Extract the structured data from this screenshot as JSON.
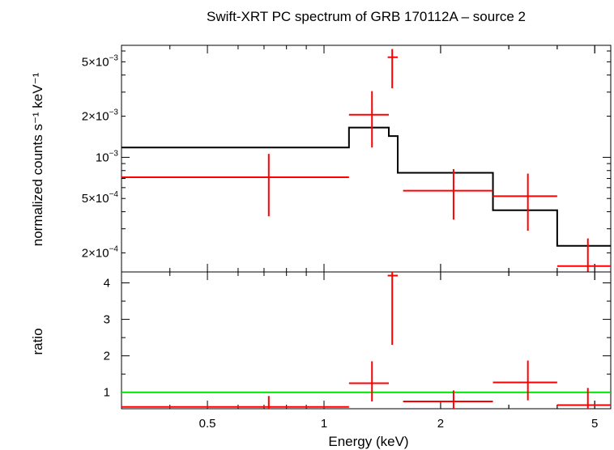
{
  "chart_data": [
    {
      "panel": "spectrum",
      "type": "scatter",
      "title": "Swift-XRT PC spectrum of GRB 170112A – source 2",
      "xlabel": "Energy (keV)",
      "ylabel": "normalized counts s⁻¹ keV⁻¹",
      "xscale": "log",
      "yscale": "log",
      "xlim": [
        0.3,
        5.5
      ],
      "ylim": [
        0.000145,
        0.0066
      ],
      "yticks": [
        {
          "value": 0.005,
          "label_base": "5×10",
          "label_exp": "−3"
        },
        {
          "value": 0.002,
          "label_base": "2×10",
          "label_exp": "−3"
        },
        {
          "value": 0.001,
          "label_base": "10",
          "label_exp": "−3"
        },
        {
          "value": 0.0005,
          "label_base": "5×10",
          "label_exp": "−4"
        },
        {
          "value": 0.0002,
          "label_base": "2×10",
          "label_exp": "−4"
        }
      ],
      "series": [
        {
          "name": "data",
          "color": "#ff0000",
          "points": [
            {
              "x": 0.72,
              "xlo": 0.3,
              "xhi": 1.16,
              "y": 0.000715,
              "ylo": 0.00037,
              "yhi": 0.00106
            },
            {
              "x": 1.33,
              "xlo": 1.16,
              "xhi": 1.47,
              "y": 0.00205,
              "ylo": 0.00118,
              "yhi": 0.00305
            },
            {
              "x": 1.5,
              "xlo": 1.46,
              "xhi": 1.55,
              "y": 0.0054,
              "ylo": 0.0032,
              "yhi": 0.0062
            },
            {
              "x": 2.16,
              "xlo": 1.6,
              "xhi": 2.73,
              "y": 0.00057,
              "ylo": 0.00035,
              "yhi": 0.00082
            },
            {
              "x": 3.36,
              "xlo": 2.73,
              "xhi": 4.0,
              "y": 0.00052,
              "ylo": 0.00029,
              "yhi": 0.00076
            },
            {
              "x": 4.8,
              "xlo": 4.0,
              "xhi": 5.5,
              "y": 0.00016,
              "ylo": 0.000145,
              "yhi": 0.000255
            }
          ]
        },
        {
          "name": "model",
          "color": "#000000",
          "steps": [
            {
              "x0": 0.3,
              "x1": 1.16,
              "y": 0.00118
            },
            {
              "x0": 1.16,
              "x1": 1.47,
              "y": 0.00165
            },
            {
              "x0": 1.47,
              "x1": 1.55,
              "y": 0.00143
            },
            {
              "x0": 1.55,
              "x1": 2.73,
              "y": 0.00077
            },
            {
              "x0": 2.73,
              "x1": 4.0,
              "y": 0.00041
            },
            {
              "x0": 4.0,
              "x1": 5.5,
              "y": 0.000225
            }
          ]
        }
      ]
    },
    {
      "panel": "ratio",
      "type": "scatter",
      "xlabel": "Energy (keV)",
      "ylabel": "ratio",
      "xscale": "log",
      "yscale": "linear",
      "xlim": [
        0.3,
        5.5
      ],
      "ylim": [
        0.55,
        4.3
      ],
      "xticks": [
        {
          "value": 0.5,
          "label": "0.5"
        },
        {
          "value": 1,
          "label": "1"
        },
        {
          "value": 2,
          "label": "2"
        },
        {
          "value": 5,
          "label": "5"
        }
      ],
      "yticks": [
        {
          "value": 1,
          "label": "1"
        },
        {
          "value": 2,
          "label": "2"
        },
        {
          "value": 3,
          "label": "3"
        },
        {
          "value": 4,
          "label": "4"
        }
      ],
      "reference_line": {
        "y": 1,
        "color": "#00e000"
      },
      "series": [
        {
          "name": "ratio",
          "color": "#ff0000",
          "points": [
            {
              "x": 0.72,
              "xlo": 0.3,
              "xhi": 1.16,
              "y": 0.6,
              "ylo": 0.55,
              "yhi": 0.9
            },
            {
              "x": 1.33,
              "xlo": 1.16,
              "xhi": 1.47,
              "y": 1.25,
              "ylo": 0.75,
              "yhi": 1.85
            },
            {
              "x": 1.5,
              "xlo": 1.46,
              "xhi": 1.55,
              "y": 4.2,
              "ylo": 2.3,
              "yhi": 4.3
            },
            {
              "x": 2.16,
              "xlo": 1.6,
              "xhi": 2.73,
              "y": 0.75,
              "ylo": 0.55,
              "yhi": 1.05
            },
            {
              "x": 3.36,
              "xlo": 2.73,
              "xhi": 4.0,
              "y": 1.27,
              "ylo": 0.78,
              "yhi": 1.87
            },
            {
              "x": 4.8,
              "xlo": 4.0,
              "xhi": 5.5,
              "y": 0.65,
              "ylo": 0.55,
              "yhi": 1.12
            }
          ]
        }
      ]
    }
  ]
}
